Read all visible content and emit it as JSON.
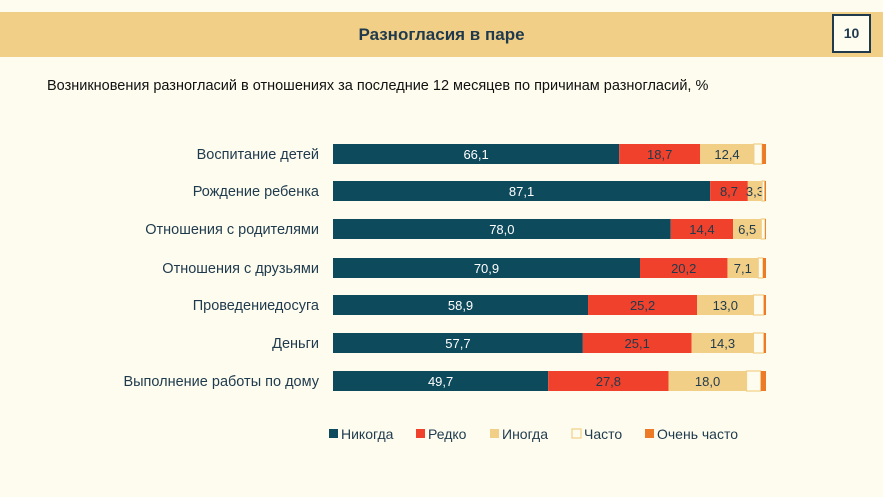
{
  "slide": {
    "title": "Разногласия в паре",
    "page_number": "10"
  },
  "chart_data": {
    "type": "bar",
    "orientation": "horizontal",
    "stacked": true,
    "title": "Возникновения разногласий в отношениях за последние 12 месяцев по причинам разногласий, %",
    "categories": [
      "Воспитание детей",
      "Рождение ребенка",
      "Отношения с родителями",
      "Отношения с друзьями",
      "Проведениедосуга",
      "Деньги",
      "Выполнение работы по дому"
    ],
    "series": [
      {
        "name": "Никогда",
        "color": "#0d4a5c",
        "label_color": "#ffffff",
        "values": [
          66.1,
          87.1,
          78.0,
          70.9,
          58.9,
          57.7,
          49.7
        ],
        "labels": [
          "66,1",
          "87,1",
          "78,0",
          "70,9",
          "58,9",
          "57,7",
          "49,7"
        ]
      },
      {
        "name": "Редко",
        "color": "#f0412d",
        "label_color": "#1f3a4d",
        "values": [
          18.7,
          8.7,
          14.4,
          20.2,
          25.2,
          25.1,
          27.8
        ],
        "labels": [
          "18,7",
          "8,7",
          "14,4",
          "20,2",
          "25,2",
          "25,1",
          "27,8"
        ]
      },
      {
        "name": "Иногда",
        "color": "#f2cf86",
        "label_color": "#1f3a4d",
        "values": [
          12.4,
          3.3,
          6.5,
          7.1,
          13.0,
          14.3,
          18.0
        ],
        "labels": [
          "12,4",
          "3,3",
          "6,5",
          "7,1",
          "13,0",
          "14,3",
          "18,0"
        ]
      },
      {
        "name": "Часто",
        "color": "#fdfcee",
        "border": "#f2cf86",
        "label_color": "#1f3a4d",
        "values": [
          1.9,
          0.6,
          0.9,
          1.1,
          2.4,
          2.4,
          3.3
        ],
        "labels": [
          "",
          "",
          "",
          "",
          "",
          "",
          ""
        ]
      },
      {
        "name": "Очень часто",
        "color": "#ec7a26",
        "label_color": "#1f3a4d",
        "values": [
          0.9,
          0.3,
          0.2,
          0.7,
          0.5,
          0.5,
          1.2
        ],
        "labels": [
          "",
          "",
          "",
          "",
          "",
          "",
          ""
        ]
      }
    ],
    "xlim": [
      0,
      100
    ],
    "legend": "bottom",
    "grid": false
  }
}
